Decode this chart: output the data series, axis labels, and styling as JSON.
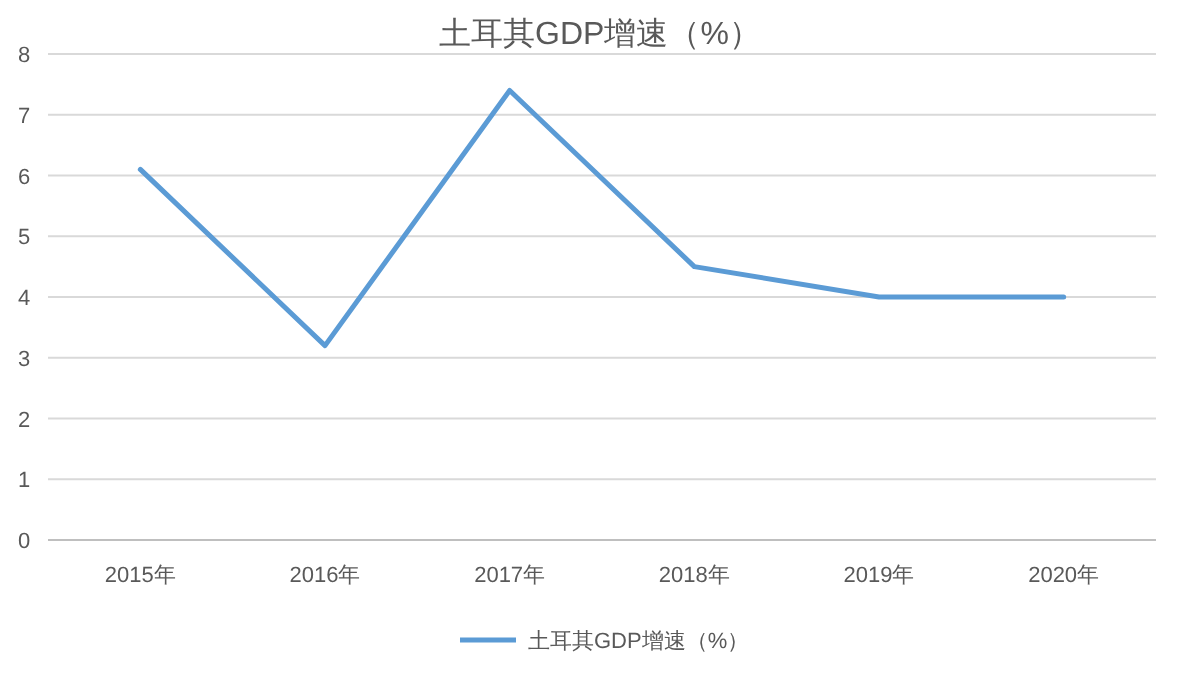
{
  "chart_data": {
    "type": "line",
    "title": "土耳其GDP增速（%）",
    "categories": [
      "2015年",
      "2016年",
      "2017年",
      "2018年",
      "2019年",
      "2020年"
    ],
    "series": [
      {
        "name": "土耳其GDP增速（%）",
        "color": "#5b9bd5",
        "values": [
          6.1,
          3.2,
          7.4,
          4.5,
          4.0,
          4.0
        ]
      }
    ],
    "ylim": [
      0,
      8
    ],
    "yticks": [
      0,
      1,
      2,
      3,
      4,
      5,
      6,
      7,
      8
    ],
    "grid": "y",
    "legend": "bottom",
    "marker": "none",
    "line_style": "solid"
  }
}
